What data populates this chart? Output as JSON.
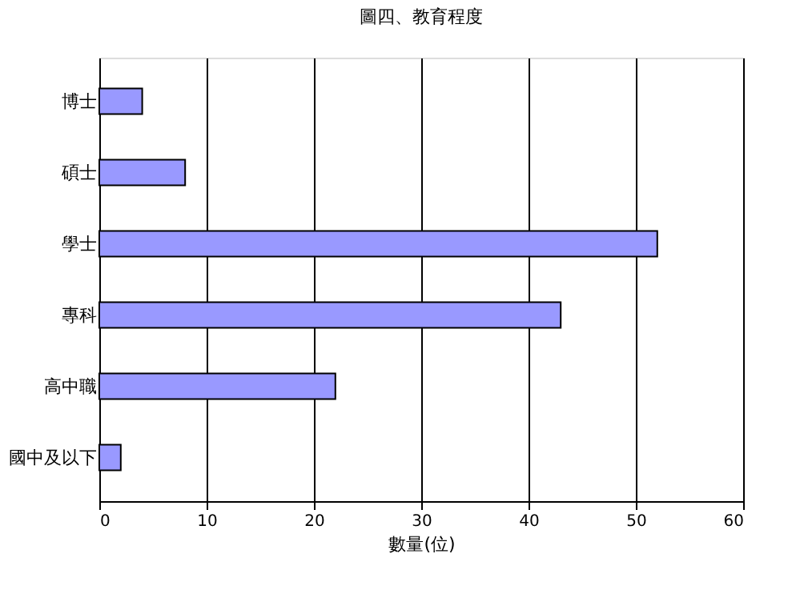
{
  "chart_data": {
    "type": "bar",
    "orientation": "horizontal",
    "title": "圖四、教育程度",
    "xlabel": "數量(位)",
    "categories": [
      "博士",
      "碩士",
      "學士",
      "專科",
      "高中職",
      "國中及以下"
    ],
    "values": [
      4,
      8,
      52,
      43,
      22,
      2
    ],
    "color": "#9999ff",
    "xlim": [
      0,
      60
    ],
    "xticks": [
      0,
      10,
      20,
      30,
      40,
      50,
      60
    ],
    "grid": "x"
  }
}
